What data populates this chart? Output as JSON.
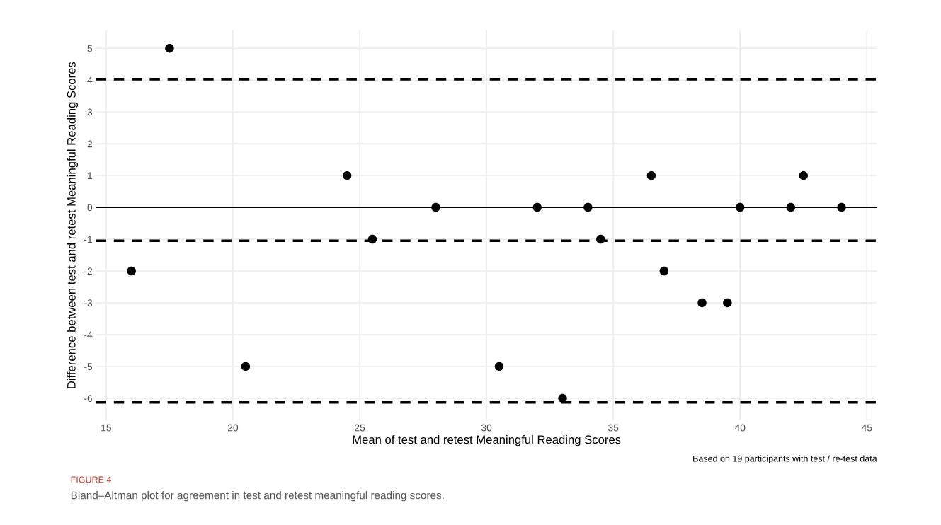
{
  "chart_data": {
    "type": "scatter",
    "xlabel": "Mean of test and retest Meaningful Reading Scores",
    "ylabel": "Difference between test and retest Meaningful Reading Scores",
    "x": [
      16,
      17.5,
      20.5,
      24.5,
      25.5,
      28,
      30.5,
      32,
      33,
      34,
      34.5,
      36.5,
      37,
      38.5,
      39.5,
      40,
      42,
      42.5,
      44
    ],
    "series": [
      {
        "color": "#000000",
        "values": [
          -2,
          5,
          -5,
          1,
          -1,
          0,
          -5,
          0,
          -6,
          0,
          -1,
          1,
          -2,
          -3,
          -3,
          0,
          0,
          1,
          0
        ]
      }
    ],
    "marker": "circle",
    "xlim": [
      14.6,
      45.4
    ],
    "xticks": [
      15,
      20,
      25,
      30,
      35,
      40,
      45
    ],
    "ylim": [
      -6.7,
      5.56
    ],
    "yticks": [
      -6,
      -5,
      -4,
      -3,
      -2,
      -1,
      0,
      1,
      2,
      3,
      4,
      5
    ],
    "grid": true,
    "ref_lines": [
      {
        "axis": "y",
        "value": 0,
        "color": "#000000",
        "line_style": "solid"
      },
      {
        "axis": "y",
        "value": 4.03,
        "color": "#000000",
        "line_style": "dashed"
      },
      {
        "axis": "y",
        "value": -1.05,
        "color": "#000000",
        "line_style": "dashed"
      },
      {
        "axis": "y",
        "value": -6.13,
        "color": "#000000",
        "line_style": "dashed"
      }
    ],
    "annotations": [
      "Based on 19 participants with test / re-test data",
      "FIGURE 4",
      "Bland–Altman plot for agreement in test and retest meaningful reading scores."
    ]
  }
}
